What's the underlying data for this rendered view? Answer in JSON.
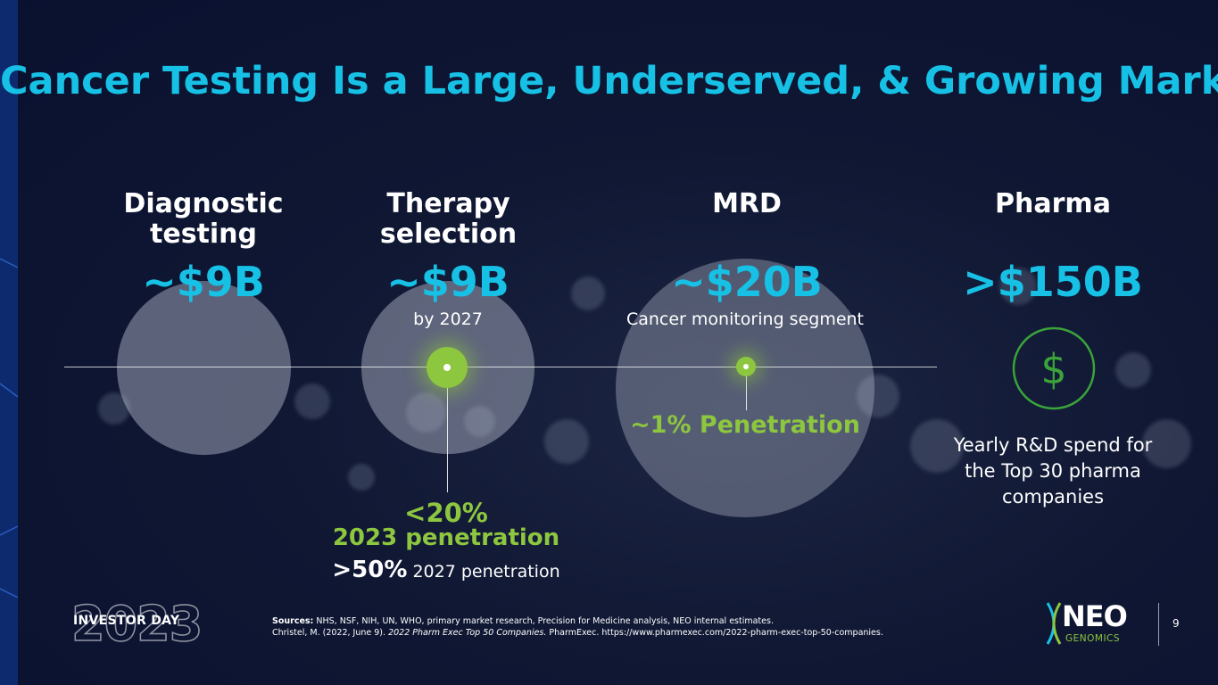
{
  "title": "Cancer Testing Is a Large, Underserved, & Growing Market",
  "segments": [
    {
      "category": "Diagnostic testing",
      "value": "~$9B"
    },
    {
      "category": "Therapy selection",
      "value": "~$9B",
      "note": "by 2027"
    },
    {
      "category": "MRD",
      "value": "~$20B",
      "note": "Cancer monitoring segment"
    },
    {
      "category": "Pharma",
      "value": ">$150B",
      "note": "Yearly R&D spend for the Top 30 pharma companies"
    }
  ],
  "therapy_penetration": {
    "headline": "<20%",
    "headline_sub": "2023 penetration",
    "future_value": ">50%",
    "future_label": "2027 penetration"
  },
  "mrd_penetration": "~1% Penetration",
  "icon": {
    "pharma": "dollar-circle-icon",
    "currency_symbol": "$"
  },
  "sources": {
    "prefix": "Sources:",
    "line1": "NHS, NSF, NIH, UN, WHO, primary market research, Precision for Medicine analysis, NEO internal estimates.",
    "line2_a": "Christel, M. (2022, June 9). ",
    "line2_italic": "2022 Pharm Exec Top 50 Companies.",
    "line2_b": " PharmExec. https://www.pharmexec.com/2022-pharm-exec-top-50-companies."
  },
  "footer": {
    "event": "INVESTOR DAY",
    "year": "2023",
    "logo_main": "NEO",
    "logo_sub": "GENOMICS",
    "page_number": "9"
  },
  "colors": {
    "accent_blue": "#17c1e6",
    "accent_green": "#8dc63f",
    "background": "#0a1130"
  }
}
